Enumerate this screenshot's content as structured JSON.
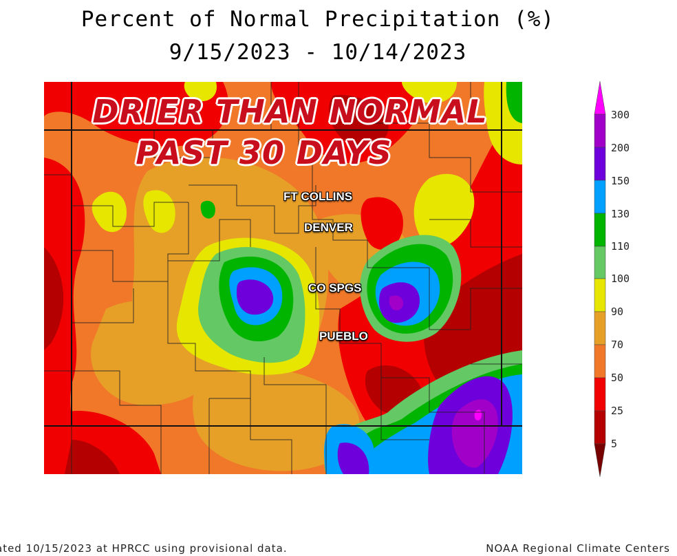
{
  "title_line1": "Percent of Normal Precipitation (%)",
  "title_line2": "9/15/2023 - 10/14/2023",
  "banner_line1": "DRIER THAN NORMAL",
  "banner_line2": "PAST 30 DAYS",
  "cities": {
    "ft_collins": "FT COLLINS",
    "denver": "DENVER",
    "co_spgs": "CO SPGS",
    "pueblo": "PUEBLO"
  },
  "legend": {
    "ticks": [
      "300",
      "200",
      "150",
      "130",
      "110",
      "100",
      "90",
      "70",
      "50",
      "25",
      "5"
    ],
    "colors": [
      "#ff00ff",
      "#a000c8",
      "#6e00dc",
      "#00a0ff",
      "#00b400",
      "#64c864",
      "#e6e600",
      "#e6a028",
      "#f07828",
      "#f00000",
      "#b40000",
      "#780000"
    ]
  },
  "footer_left": "ated 10/15/2023 at HPRCC using provisional data.",
  "footer_right": "NOAA Regional Climate Centers"
}
